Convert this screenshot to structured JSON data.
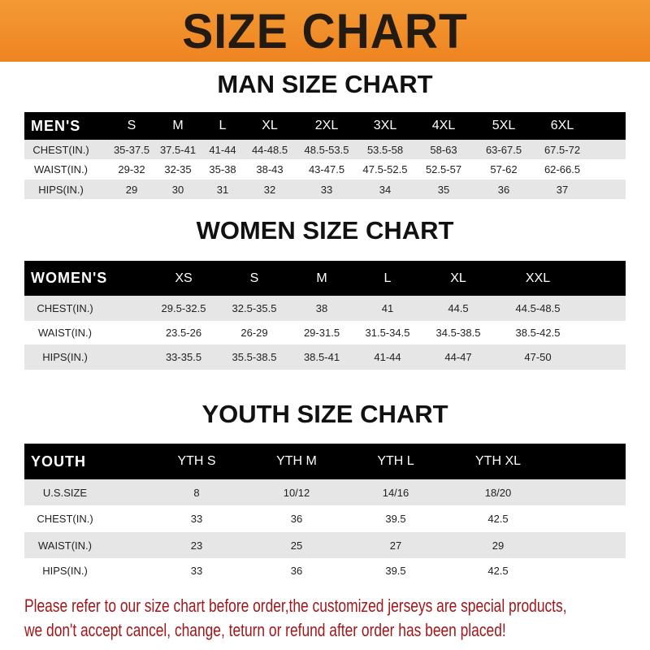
{
  "banner": {
    "title": "SIZE CHART",
    "color": "#f08a24"
  },
  "men": {
    "title": "MAN SIZE CHART",
    "header": [
      "MEN'S",
      "S",
      "M",
      "L",
      "XL",
      "2XL",
      "3XL",
      "4XL",
      "5XL",
      "6XL"
    ],
    "rows": [
      [
        "CHEST(IN.)",
        "35-37.5",
        "37.5-41",
        "41-44",
        "44-48.5",
        "48.5-53.5",
        "53.5-58",
        "58-63",
        "63-67.5",
        "67.5-72"
      ],
      [
        "WAIST(IN.)",
        "29-32",
        "32-35",
        "35-38",
        "38-43",
        "43-47.5",
        "47.5-52.5",
        "52.5-57",
        "57-62",
        "62-66.5"
      ],
      [
        "HIPS(IN.)",
        "29",
        "30",
        "31",
        "32",
        "33",
        "34",
        "35",
        "36",
        "37"
      ]
    ]
  },
  "women": {
    "title": "WOMEN SIZE CHART",
    "header": [
      "WOMEN'S",
      "XS",
      "S",
      "M",
      "L",
      "XL",
      "XXL"
    ],
    "rows": [
      [
        "CHEST(IN.)",
        "29.5-32.5",
        "32.5-35.5",
        "38",
        "41",
        "44.5",
        "44.5-48.5"
      ],
      [
        "WAIST(IN.)",
        "23.5-26",
        "26-29",
        "29-31.5",
        "31.5-34.5",
        "34.5-38.5",
        "38.5-42.5"
      ],
      [
        "HIPS(IN.)",
        "33-35.5",
        "35.5-38.5",
        "38.5-41",
        "41-44",
        "44-47",
        "47-50"
      ]
    ]
  },
  "youth": {
    "title": "YOUTH SIZE CHART",
    "header": [
      "YOUTH",
      "YTH S",
      "YTH M",
      "YTH L",
      "YTH XL"
    ],
    "rows": [
      [
        "U.S.SIZE",
        "8",
        "10/12",
        "14/16",
        "18/20"
      ],
      [
        "CHEST(IN.)",
        "33",
        "36",
        "39.5",
        "42.5"
      ],
      [
        "WAIST(IN.)",
        "23",
        "25",
        "27",
        "29"
      ],
      [
        "HIPS(IN.)",
        "33",
        "36",
        "39.5",
        "42.5"
      ]
    ]
  },
  "note": {
    "line1": "Please refer to our size chart before order,the customized jerseys are special products,",
    "line2": "we don't accept cancel, change, teturn or refund after order has been placed!",
    "color": "#a3161a"
  }
}
